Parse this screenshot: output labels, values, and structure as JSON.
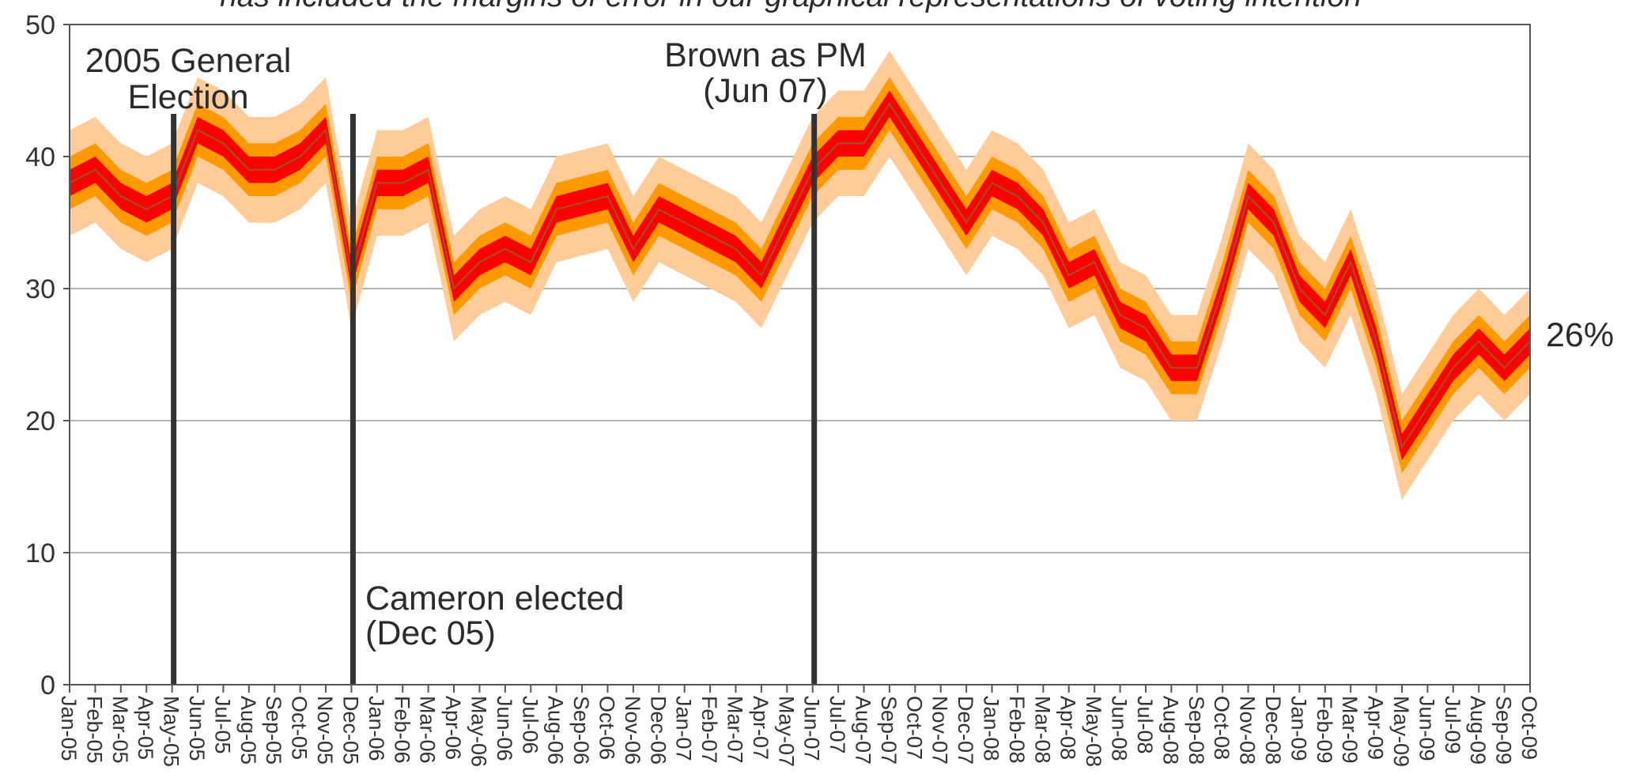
{
  "chart_data": {
    "type": "area",
    "title": "has included the margins of error in our graphical representations of voting intention",
    "xlabel": "",
    "ylabel": "",
    "ylim": [
      0,
      50
    ],
    "yticks": [
      0,
      10,
      20,
      30,
      40,
      50
    ],
    "grid": true,
    "categories": [
      "Jan-05",
      "Feb-05",
      "Mar-05",
      "Apr-05",
      "May-05",
      "Jun-05",
      "Jul-05",
      "Aug-05",
      "Sep-05",
      "Oct-05",
      "Nov-05",
      "Dec-05",
      "Jan-06",
      "Feb-06",
      "Mar-06",
      "Apr-06",
      "May-06",
      "Jun-06",
      "Jul-06",
      "Aug-06",
      "Sep-06",
      "Oct-06",
      "Nov-06",
      "Dec-06",
      "Jan-07",
      "Feb-07",
      "Mar-07",
      "Apr-07",
      "May-07",
      "Jun-07",
      "Jul-07",
      "Aug-07",
      "Sep-07",
      "Oct-07",
      "Nov-07",
      "Dec-07",
      "Jan-08",
      "Feb-08",
      "Mar-08",
      "Apr-08",
      "May-08",
      "Jun-08",
      "Jul-08",
      "Aug-08",
      "Sep-08",
      "Oct-08",
      "Nov-08",
      "Dec-08",
      "Jan-09",
      "Feb-09",
      "Mar-09",
      "Apr-09",
      "May-09",
      "Jun-09",
      "Jul-09",
      "Aug-09",
      "Sep-09",
      "Oct-09"
    ],
    "series": [
      {
        "values": [
          38,
          39,
          37,
          36,
          37,
          42,
          41,
          39,
          39,
          40,
          42,
          31,
          38,
          38,
          39,
          30,
          32,
          33,
          32,
          36,
          36.5,
          37,
          33,
          36,
          35,
          34,
          33,
          31,
          35,
          39,
          41,
          41,
          44,
          41,
          38,
          35,
          38,
          37,
          35,
          31,
          32,
          28,
          27,
          24,
          24,
          30,
          37,
          35,
          30,
          28,
          32,
          26,
          18,
          21,
          24,
          26,
          24,
          26
        ],
        "bands": [
          {
            "label": "",
            "width": 1,
            "color": "#ff0000"
          },
          {
            "label": "",
            "width": 2,
            "color": "#ff9900"
          },
          {
            "label": "",
            "width": 4,
            "color": "#ffcc99"
          }
        ],
        "line_color": "#a0522d"
      }
    ],
    "end_label": "26%",
    "annotations": [
      {
        "id": "ge2005",
        "at": "May-05",
        "lines": [
          "2005 General",
          "Election"
        ]
      },
      {
        "id": "cameron",
        "at": "Dec-05",
        "lines": [
          "Cameron elected",
          "(Dec 05)"
        ]
      },
      {
        "id": "brown",
        "at": "Jun-07",
        "lines": [
          "Brown as PM",
          "(Jun 07)"
        ]
      }
    ]
  }
}
